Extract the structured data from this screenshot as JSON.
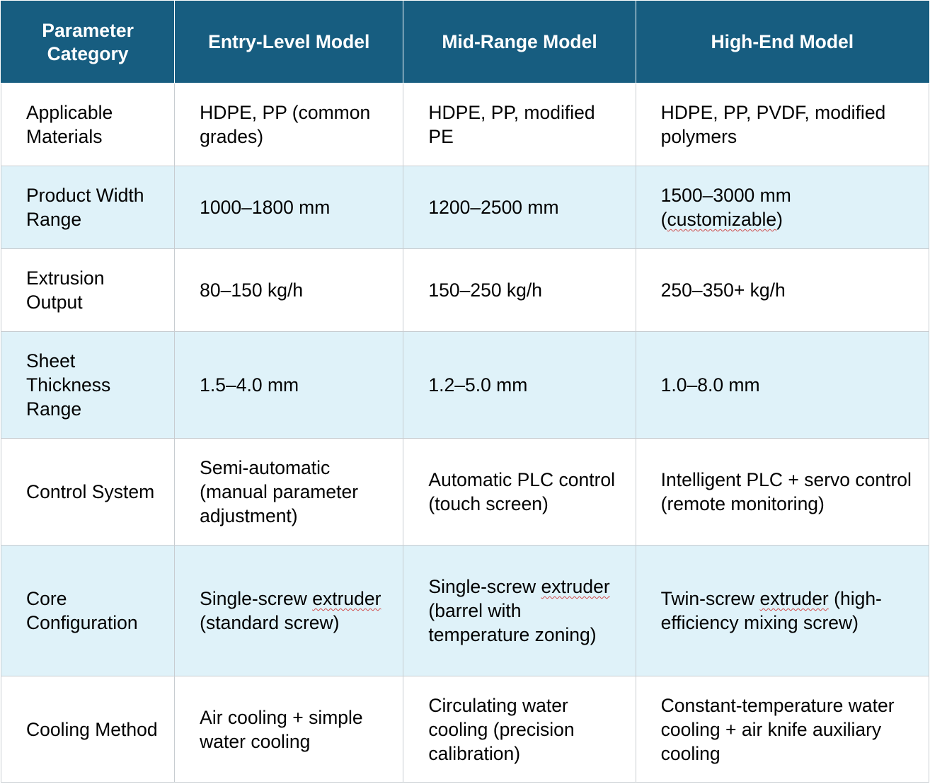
{
  "headers": [
    "Parameter Category",
    "Entry-Level Model",
    "Mid-Range Model",
    "High-End Model"
  ],
  "rows": [
    {
      "category": "Applicable Materials",
      "entry": "HDPE, PP (common grades)",
      "mid": "HDPE, PP, modified PE",
      "high": "HDPE, PP, PVDF, modified polymers"
    },
    {
      "category": "Product Width Range",
      "entry": "1000–1800 mm",
      "mid": "1200–2500 mm",
      "high_a": "1500–3000 mm (",
      "high_b": "customizable",
      "high_c": ")"
    },
    {
      "category": "Extrusion Output",
      "entry": "80–150 kg/h",
      "mid": "150–250 kg/h",
      "high": "250–350+ kg/h"
    },
    {
      "category": "Sheet Thickness Range",
      "entry": "1.5–4.0 mm",
      "mid": "1.2–5.0 mm",
      "high": "1.0–8.0 mm"
    },
    {
      "category": "Control System",
      "entry": "Semi-automatic (manual parameter adjustment)",
      "mid": "Automatic PLC control (touch screen)",
      "high": "Intelligent PLC + servo control (remote monitoring)"
    },
    {
      "category": "Core Configuration",
      "entry_a": "Single-screw ",
      "entry_b": "extruder",
      "entry_c": " (standard screw)",
      "mid_a": "Single-screw ",
      "mid_b": "extruder",
      "mid_c": " (barrel with temperature zoning)",
      "high_a": "Twin-screw ",
      "high_b": "extruder",
      "high_c": " (high-efficiency mixing screw)"
    },
    {
      "category": "Cooling Method",
      "entry": "Air cooling + simple water cooling",
      "mid": "Circulating water cooling (precision calibration)",
      "high": "Constant-temperature water cooling + air knife auxiliary cooling"
    }
  ]
}
